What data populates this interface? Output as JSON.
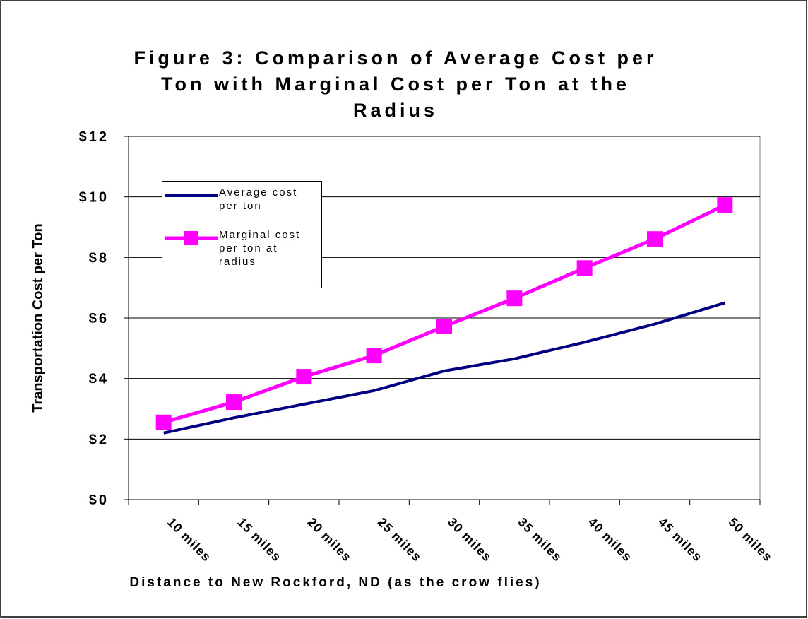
{
  "chart_data": {
    "type": "line",
    "title": "Figure 3: Comparison of Average Cost per Ton with Marginal Cost per Ton at the Radius",
    "x_label": "Distance to New Rockford, ND (as the crow flies)",
    "y_label": "Transportation Cost per Ton",
    "categories": [
      "10 miles",
      "15 miles",
      "20 miles",
      "25 miles",
      "30 miles",
      "35 miles",
      "40 miles",
      "45 miles",
      "50 miles"
    ],
    "series": [
      {
        "name": "Average cost per ton",
        "color": "#000080",
        "values": [
          2.2,
          2.7,
          3.15,
          3.6,
          4.25,
          4.65,
          5.2,
          5.8,
          6.5
        ]
      },
      {
        "name": "Marginal cost per ton at radius",
        "color": "#ff00ff",
        "marker": "square",
        "values": [
          2.55,
          3.22,
          4.06,
          4.76,
          5.72,
          6.65,
          7.65,
          8.61,
          9.73
        ]
      }
    ],
    "ylim": [
      0,
      12
    ],
    "yticks": [
      {
        "value": 0,
        "label": "$0"
      },
      {
        "value": 2,
        "label": "$2"
      },
      {
        "value": 4,
        "label": "$4"
      },
      {
        "value": 6,
        "label": "$6"
      },
      {
        "value": 8,
        "label": "$8"
      },
      {
        "value": 10,
        "label": "$10"
      },
      {
        "value": 12,
        "label": "$12"
      }
    ],
    "grid": true
  }
}
